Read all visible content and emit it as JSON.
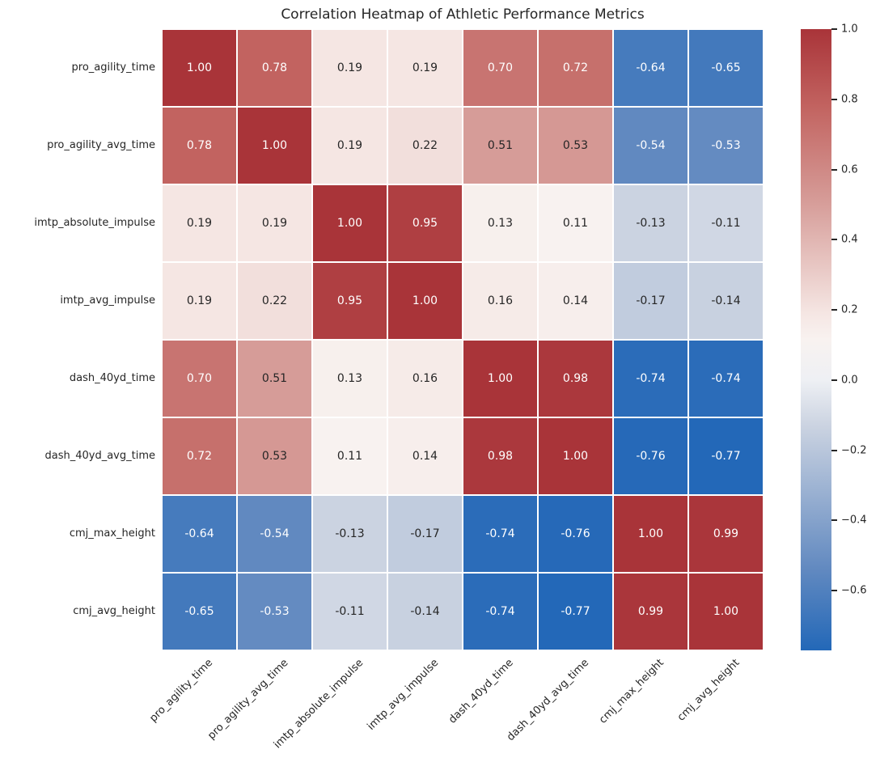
{
  "chart_data": {
    "type": "heatmap",
    "title": "Correlation Heatmap of Athletic Performance Metrics",
    "categories": [
      "pro_agility_time",
      "pro_agility_avg_time",
      "imtp_absolute_impulse",
      "imtp_avg_impulse",
      "dash_40yd_time",
      "dash_40yd_avg_time",
      "cmj_max_height",
      "cmj_avg_height"
    ],
    "matrix": [
      [
        1.0,
        0.78,
        0.19,
        0.19,
        0.7,
        0.72,
        -0.64,
        -0.65
      ],
      [
        0.78,
        1.0,
        0.19,
        0.22,
        0.51,
        0.53,
        -0.54,
        -0.53
      ],
      [
        0.19,
        0.19,
        1.0,
        0.95,
        0.13,
        0.11,
        -0.13,
        -0.11
      ],
      [
        0.19,
        0.22,
        0.95,
        1.0,
        0.16,
        0.14,
        -0.17,
        -0.14
      ],
      [
        0.7,
        0.51,
        0.13,
        0.16,
        1.0,
        0.98,
        -0.74,
        -0.74
      ],
      [
        0.72,
        0.53,
        0.11,
        0.14,
        0.98,
        1.0,
        -0.76,
        -0.77
      ],
      [
        -0.64,
        -0.54,
        -0.13,
        -0.17,
        -0.74,
        -0.76,
        1.0,
        0.99
      ],
      [
        -0.65,
        -0.53,
        -0.11,
        -0.14,
        -0.74,
        -0.77,
        0.99,
        1.0
      ]
    ],
    "annotation_decimals": 2,
    "annotations_shown": true,
    "grid_on": true,
    "grid_line_color": "#ffffff",
    "axis_text_color": "#262626",
    "annotation_text_light": "#ffffff",
    "annotation_text_dark": "#262626",
    "x_tick_rotation_deg": 45,
    "colormap_anchors": [
      {
        "value": -0.77,
        "color": "#2368b8"
      },
      {
        "value": -0.54,
        "color": "#6189c0"
      },
      {
        "value": -0.13,
        "color": "#cbd3e1"
      },
      {
        "value": 0.0,
        "color": "#eef0f4"
      },
      {
        "value": 0.115,
        "color": "#f8f2f0"
      },
      {
        "value": 0.19,
        "color": "#f5e6e3"
      },
      {
        "value": 0.51,
        "color": "#d69c98"
      },
      {
        "value": 0.78,
        "color": "#c26360"
      },
      {
        "value": 1.0,
        "color": "#a93439"
      }
    ],
    "colorbar": {
      "position": "right",
      "vmin": -0.77,
      "vmax": 1.0,
      "ticks": [
        1.0,
        0.8,
        0.6,
        0.4,
        0.2,
        0.0,
        -0.2,
        -0.4,
        -0.6
      ],
      "tick_labels": [
        "1.0",
        "0.8",
        "0.6",
        "0.4",
        "0.2",
        "0.0",
        "−0.2",
        "−0.4",
        "−0.6"
      ]
    }
  }
}
